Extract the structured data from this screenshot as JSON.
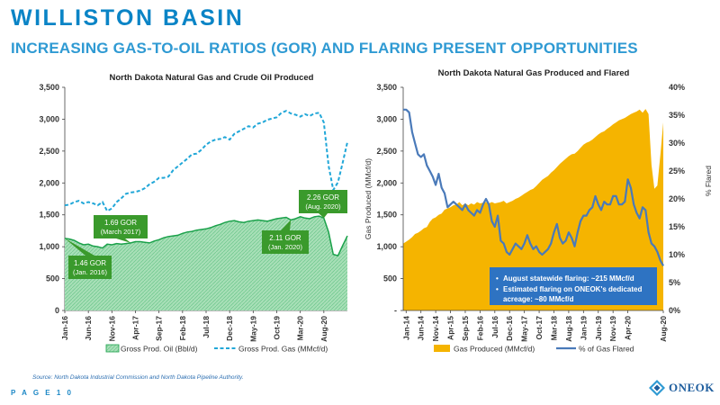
{
  "header": {
    "title": "WILLISTON BASIN",
    "subtitle": "INCREASING GAS-TO-OIL RATIOS (GOR) AND FLARING PRESENT OPPORTUNITIES"
  },
  "footer": {
    "source": "Source: North Dakota Industrial Commission and North Dakota Pipeline Authority.",
    "page_label": "P A G E  1 0",
    "logo_text": "ONEOK"
  },
  "colors": {
    "oil_green": "#1aa14a",
    "oil_fill": "#a8dfb7",
    "gas_blue": "#21a7d8",
    "produced_gold": "#f5b400",
    "flare_blue": "#4a7ab9",
    "annotation_green": "#3a9a2c",
    "callout_blue": "#2e73c2"
  },
  "chart_data": [
    {
      "type": "area",
      "title": "North Dakota Natural Gas and Crude Oil Produced",
      "ylim": [
        0,
        3500
      ],
      "yticks": [
        "0",
        "500",
        "1,000",
        "1,500",
        "2,000",
        "2,500",
        "3,000",
        "3,500"
      ],
      "x_labels": [
        "Jan-16",
        "Jun-16",
        "Nov-16",
        "Apr-17",
        "Sep-17",
        "Feb-18",
        "Jul-18",
        "Dec-18",
        "May-19",
        "Oct-19",
        "Mar-20",
        "Aug-20"
      ],
      "grid": false,
      "legend_position": "bottom",
      "series": [
        {
          "name": "Gross Prod. Oil (Bbl/d)",
          "style": "area",
          "values": [
            1130,
            1120,
            1100,
            1060,
            1030,
            1040,
            1010,
            1000,
            980,
            1040,
            1030,
            1050,
            1040,
            1050,
            1060,
            1080,
            1080,
            1070,
            1060,
            1090,
            1110,
            1140,
            1160,
            1170,
            1180,
            1210,
            1230,
            1240,
            1260,
            1270,
            1280,
            1300,
            1330,
            1350,
            1380,
            1400,
            1410,
            1390,
            1380,
            1400,
            1410,
            1420,
            1410,
            1400,
            1420,
            1440,
            1450,
            1460,
            1420,
            1440,
            1470,
            1450,
            1440,
            1470,
            1480,
            1450,
            1230,
            880,
            860,
            1020,
            1170
          ]
        },
        {
          "name": "Gross Prod. Gas (MMcf/d)",
          "style": "dashed-line",
          "values": [
            1650,
            1660,
            1700,
            1720,
            1680,
            1700,
            1680,
            1650,
            1700,
            1560,
            1600,
            1700,
            1760,
            1830,
            1850,
            1860,
            1880,
            1920,
            1980,
            2020,
            2080,
            2080,
            2100,
            2200,
            2260,
            2320,
            2380,
            2450,
            2460,
            2520,
            2600,
            2650,
            2680,
            2690,
            2720,
            2680,
            2770,
            2810,
            2850,
            2890,
            2870,
            2930,
            2950,
            2990,
            3010,
            3030,
            3100,
            3130,
            3090,
            3070,
            3040,
            3080,
            3050,
            3090,
            3100,
            2950,
            2270,
            1890,
            2010,
            2320,
            2640
          ]
        }
      ],
      "annotations": [
        {
          "line1": "1.46 GOR",
          "line2": "(Jan. 2016)"
        },
        {
          "line1": "1.69 GOR",
          "line2": "(March 2017)"
        },
        {
          "line1": "2.11 GOR",
          "line2": "(Jan. 2020)"
        },
        {
          "line1": "2.26 GOR",
          "line2": "(Aug. 2020)"
        }
      ]
    },
    {
      "type": "area",
      "title": "North Dakota Natural Gas Produced and Flared",
      "ylabel": "Gas Produced (MMcf/d)",
      "y2label": "% Flared",
      "ylim": [
        0,
        3500
      ],
      "y2lim": [
        0,
        40
      ],
      "yticks": [
        "-",
        "500",
        "1,000",
        "1,500",
        "2,000",
        "2,500",
        "3,000",
        "3,500"
      ],
      "y2ticks": [
        "0%",
        "5%",
        "10%",
        "15%",
        "20%",
        "25%",
        "30%",
        "35%",
        "40%"
      ],
      "x_labels": [
        "Jan-14",
        "Jun-14",
        "Nov-14",
        "Apr-15",
        "Sep-15",
        "Feb-16",
        "Jul-16",
        "Dec-16",
        "May-17",
        "Oct-17",
        "Mar-18",
        "Aug-18",
        "Jan-19",
        "Jun-19",
        "Nov-19",
        "Apr-20",
        "Aug-20"
      ],
      "grid": false,
      "legend_position": "bottom",
      "series": [
        {
          "name": "Gas Produced (MMcf/d)",
          "style": "area",
          "axis": "left",
          "values": [
            1050,
            1080,
            1110,
            1150,
            1200,
            1220,
            1250,
            1290,
            1310,
            1390,
            1440,
            1460,
            1500,
            1520,
            1580,
            1600,
            1620,
            1650,
            1660,
            1700,
            1650,
            1680,
            1650,
            1680,
            1660,
            1700,
            1680,
            1690,
            1700,
            1680,
            1700,
            1680,
            1690,
            1700,
            1720,
            1680,
            1700,
            1720,
            1750,
            1770,
            1800,
            1830,
            1860,
            1890,
            1910,
            1950,
            2000,
            2050,
            2080,
            2110,
            2160,
            2200,
            2250,
            2300,
            2340,
            2380,
            2420,
            2450,
            2460,
            2500,
            2550,
            2600,
            2630,
            2650,
            2680,
            2720,
            2760,
            2790,
            2810,
            2850,
            2880,
            2920,
            2950,
            2980,
            3000,
            3020,
            3050,
            3080,
            3100,
            3120,
            3150,
            3100,
            3160,
            3080,
            2280,
            1910,
            1960,
            2430,
            2950
          ]
        },
        {
          "name": "% of Gas Flared",
          "style": "line",
          "axis": "right",
          "values": [
            36,
            36,
            35.5,
            32,
            30,
            28,
            27.5,
            28,
            26,
            25,
            24,
            22.5,
            24.5,
            22,
            21,
            18.5,
            19,
            19.5,
            19,
            18.5,
            18,
            19,
            18,
            17.5,
            17,
            18,
            17.5,
            19,
            20,
            19,
            16,
            15,
            17,
            12.5,
            12,
            10.5,
            10,
            11,
            12,
            11.5,
            11,
            12,
            13.5,
            12,
            11,
            11.5,
            10.5,
            10,
            10.5,
            11,
            12,
            14,
            15.5,
            13,
            12,
            12.5,
            14,
            13,
            11.5,
            14,
            16,
            17,
            17,
            18,
            18.5,
            20.5,
            19,
            18,
            19.5,
            19,
            19,
            20.5,
            20.5,
            19,
            19,
            19.5,
            23.5,
            22,
            19,
            17.5,
            16.5,
            18.5,
            18,
            14,
            12,
            11.5,
            10.5,
            9,
            8
          ]
        }
      ],
      "callout": [
        "August statewide flaring: ~215 MMcf/d",
        "Estimated flaring on ONEOK's dedicated acreage: ~80 MMcf/d"
      ]
    }
  ]
}
